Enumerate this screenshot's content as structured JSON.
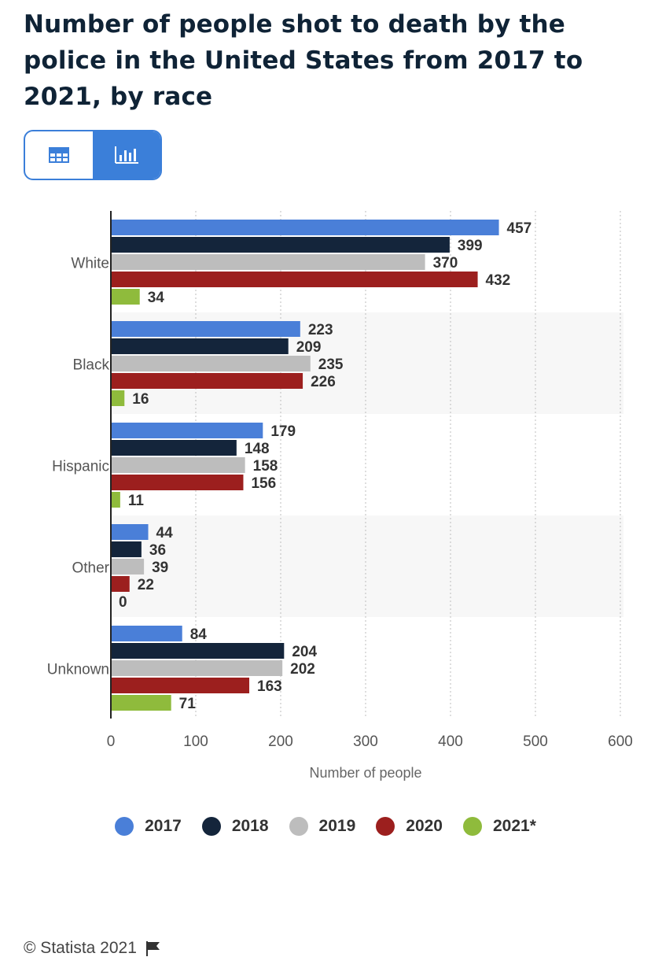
{
  "title": "Number of people shot to death by the police in the United States from 2017 to 2021, by race",
  "view_toggle": {
    "table_icon": "table-icon",
    "chart_icon": "bar-chart-icon",
    "active": "chart"
  },
  "colors": {
    "accent": "#3b7fd9"
  },
  "chart_data": {
    "type": "bar",
    "orientation": "horizontal",
    "categories": [
      "White",
      "Black",
      "Hispanic",
      "Other",
      "Unknown"
    ],
    "series": [
      {
        "name": "2017",
        "color": "#4a7fd8",
        "values": [
          457,
          223,
          179,
          44,
          84
        ]
      },
      {
        "name": "2018",
        "color": "#14253b",
        "values": [
          399,
          209,
          148,
          36,
          204
        ]
      },
      {
        "name": "2019",
        "color": "#bdbdbd",
        "values": [
          370,
          235,
          158,
          39,
          202
        ]
      },
      {
        "name": "2020",
        "color": "#9c1f1e",
        "values": [
          432,
          226,
          156,
          22,
          163
        ]
      },
      {
        "name": "2021*",
        "color": "#8fbb3c",
        "values": [
          34,
          16,
          11,
          0,
          71
        ]
      }
    ],
    "xlabel": "Number of people",
    "ylabel": "",
    "xlim": [
      0,
      600
    ],
    "xticks": [
      0,
      100,
      200,
      300,
      400,
      500,
      600
    ],
    "grid": true,
    "legend_position": "bottom"
  },
  "footer": {
    "copyright": "© Statista 2021",
    "flag_icon": "flag-icon"
  }
}
